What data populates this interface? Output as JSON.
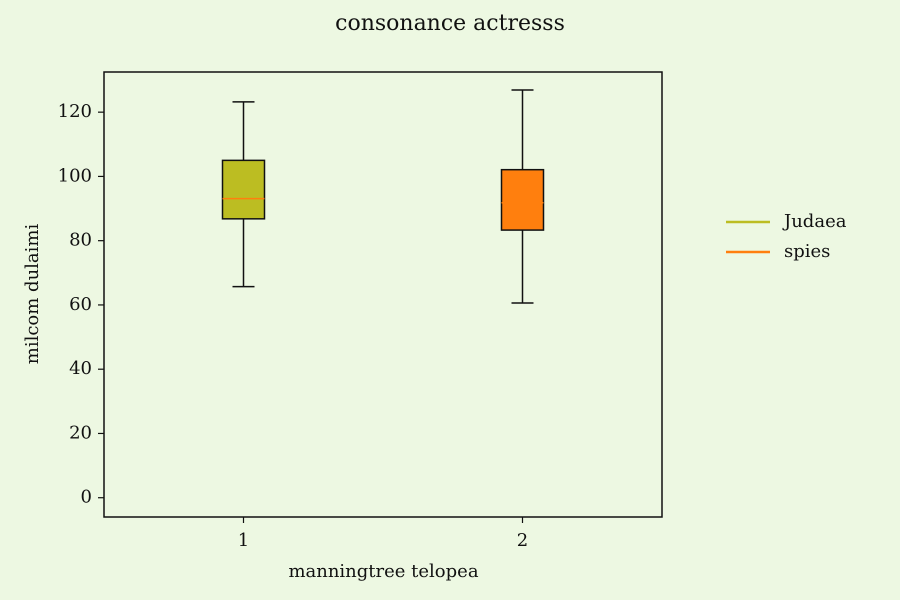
{
  "chart_data": {
    "type": "box",
    "title": "consonance actresss",
    "xlabel": "manningtree telopea",
    "ylabel": "milcom dulaimi",
    "ylim": [
      -6,
      132.5
    ],
    "yticks": [
      0,
      20,
      40,
      60,
      80,
      100,
      120
    ],
    "xlim": [
      0.5,
      2.5
    ],
    "categories": [
      "1",
      "2"
    ],
    "grid": false,
    "legend_position": "right",
    "series": [
      {
        "name": "Judaea",
        "x": 1,
        "whisker_low": 65.7,
        "q1": 86.8,
        "median": 93.1,
        "q3": 105.0,
        "whisker_high": 123.2,
        "color": "#bcbd22"
      },
      {
        "name": "spies",
        "x": 2,
        "whisker_low": 60.6,
        "q1": 83.3,
        "median": 91.8,
        "q3": 102.1,
        "whisker_high": 126.9,
        "color": "#ff7f0e"
      }
    ],
    "colors": {
      "background": "#edf8e2",
      "axes": "#111111",
      "median_line": "#ff7f0e"
    }
  }
}
